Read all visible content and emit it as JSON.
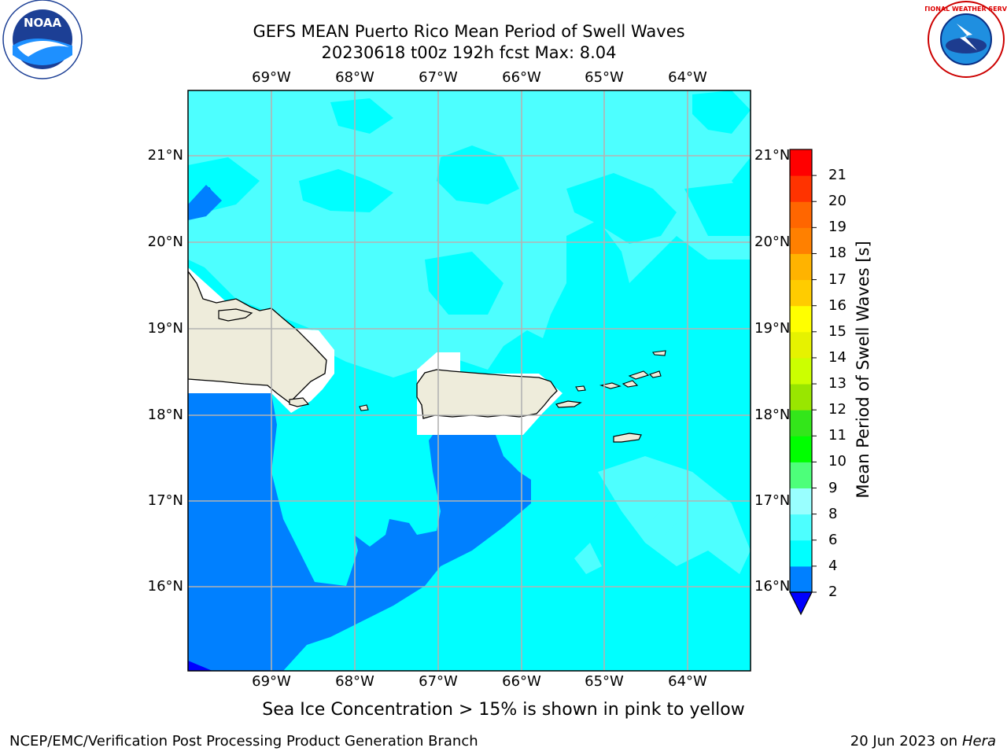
{
  "title_line1": "GEFS MEAN Puerto Rico Mean Period of Swell Waves",
  "title_line2": "20230618 t00z 192h fcst   Max: 8.04",
  "longitude_labels": [
    "69°W",
    "68°W",
    "67°W",
    "66°W",
    "65°W",
    "64°W"
  ],
  "latitude_labels": [
    "21°N",
    "20°N",
    "19°N",
    "18°N",
    "17°N",
    "16°N"
  ],
  "colorbar": {
    "label": "Mean Period of Swell Waves [s]",
    "ticks": [
      "2",
      "4",
      "6",
      "8",
      "9",
      "10",
      "11",
      "12",
      "13",
      "14",
      "15",
      "16",
      "17",
      "18",
      "19",
      "20",
      "21"
    ],
    "colors": [
      "#0080ff",
      "#00ffff",
      "#4dffff",
      "#99ffff",
      "#4dff7a",
      "#00ff00",
      "#33e61a",
      "#99e600",
      "#ccff00",
      "#e6f200",
      "#ffff00",
      "#ffcc00",
      "#ffb300",
      "#ff8000",
      "#ff6600",
      "#ff3300",
      "#ff0000"
    ],
    "under_color": "#0000ff"
  },
  "note": "Sea Ice Concentration > 15% is shown in pink to yellow",
  "footer_left": "NCEP/EMC/Verification Post Processing Product Generation Branch",
  "footer_date": "20 Jun 2023 on",
  "footer_host": "Hera",
  "logos": {
    "noaa_text": "NOAA",
    "nws_text": "NATIONAL WEATHER SERVICE"
  },
  "colors": {
    "deep_blue": "#0080ff",
    "cyan": "#00ffff",
    "light_cyan": "#4dffff",
    "land": "#eeecdb",
    "grid": "#b3b3b3"
  }
}
